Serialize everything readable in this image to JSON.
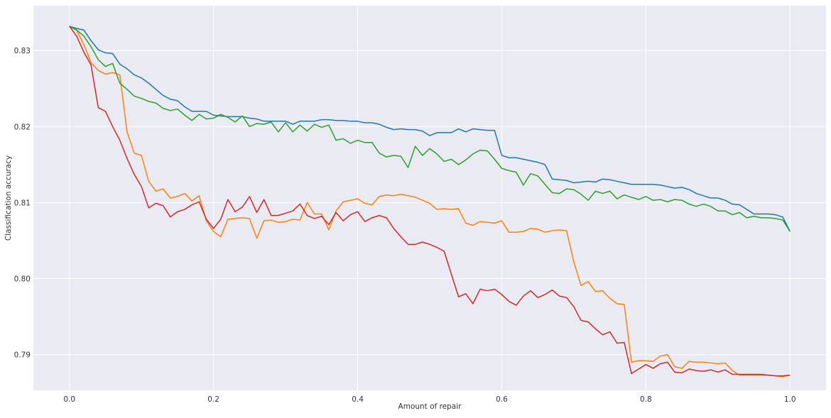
{
  "chart_data": {
    "type": "line",
    "xlabel": "Amount of repair",
    "ylabel": "Classification accuracy",
    "xlim": [
      -0.05,
      1.05
    ],
    "ylim": [
      0.7853,
      0.8359
    ],
    "grid": true,
    "legend": "none",
    "x_ticks": [
      {
        "value": 0.0,
        "label": "0.0"
      },
      {
        "value": 0.2,
        "label": "0.2"
      },
      {
        "value": 0.4,
        "label": "0.4"
      },
      {
        "value": 0.6,
        "label": "0.6"
      },
      {
        "value": 0.8,
        "label": "0.8"
      },
      {
        "value": 1.0,
        "label": "1.0"
      }
    ],
    "y_ticks": [
      {
        "value": 0.79,
        "label": "0.79"
      },
      {
        "value": 0.8,
        "label": "0.80"
      },
      {
        "value": 0.81,
        "label": "0.81"
      },
      {
        "value": 0.82,
        "label": "0.82"
      },
      {
        "value": 0.83,
        "label": "0.83"
      }
    ],
    "series": [
      {
        "color": "#1f77b4",
        "x": [
          0.0,
          0.01,
          0.02,
          0.03,
          0.04,
          0.05,
          0.06,
          0.07,
          0.08,
          0.09,
          0.1,
          0.11,
          0.12,
          0.13,
          0.14,
          0.15,
          0.16,
          0.17,
          0.18,
          0.19,
          0.2,
          0.21,
          0.22,
          0.23,
          0.24,
          0.25,
          0.26,
          0.27,
          0.28,
          0.29,
          0.3,
          0.31,
          0.32,
          0.33,
          0.34,
          0.35,
          0.36,
          0.37,
          0.38,
          0.39,
          0.4,
          0.41,
          0.42,
          0.43,
          0.44,
          0.45,
          0.46,
          0.47,
          0.48,
          0.49,
          0.5,
          0.51,
          0.52,
          0.53,
          0.54,
          0.55,
          0.56,
          0.57,
          0.58,
          0.59,
          0.6,
          0.61,
          0.62,
          0.63,
          0.64,
          0.65,
          0.66,
          0.67,
          0.68,
          0.69,
          0.7,
          0.71,
          0.72,
          0.73,
          0.74,
          0.75,
          0.76,
          0.77,
          0.78,
          0.79,
          0.8,
          0.81,
          0.82,
          0.83,
          0.84,
          0.85,
          0.86,
          0.87,
          0.88,
          0.89,
          0.9,
          0.91,
          0.92,
          0.93,
          0.94,
          0.95,
          0.96,
          0.97,
          0.98,
          0.99,
          1.0
        ],
        "y": [
          0.8332,
          0.8329,
          0.8327,
          0.8313,
          0.8301,
          0.8297,
          0.8296,
          0.8282,
          0.8276,
          0.8268,
          0.8264,
          0.8257,
          0.8249,
          0.8241,
          0.8236,
          0.8234,
          0.8226,
          0.822,
          0.822,
          0.822,
          0.8215,
          0.8214,
          0.8213,
          0.8213,
          0.8213,
          0.8211,
          0.821,
          0.8207,
          0.8207,
          0.8207,
          0.8207,
          0.8203,
          0.8207,
          0.8207,
          0.8207,
          0.8209,
          0.8209,
          0.8208,
          0.8208,
          0.8207,
          0.8207,
          0.8205,
          0.8205,
          0.8203,
          0.8199,
          0.8196,
          0.8197,
          0.8196,
          0.8196,
          0.8194,
          0.8188,
          0.8192,
          0.8192,
          0.8192,
          0.8197,
          0.8193,
          0.8197,
          0.8196,
          0.8195,
          0.8195,
          0.8162,
          0.8159,
          0.8159,
          0.8157,
          0.8155,
          0.8153,
          0.815,
          0.8131,
          0.813,
          0.8129,
          0.8126,
          0.8127,
          0.8128,
          0.8127,
          0.8131,
          0.813,
          0.8128,
          0.8126,
          0.8124,
          0.8124,
          0.8124,
          0.8124,
          0.8123,
          0.8121,
          0.8119,
          0.812,
          0.8117,
          0.8112,
          0.8109,
          0.8106,
          0.8106,
          0.8103,
          0.8098,
          0.8097,
          0.8091,
          0.8085,
          0.8085,
          0.8085,
          0.8084,
          0.8081,
          0.8062
        ]
      },
      {
        "color": "#ff7f0e",
        "x": [
          0.0,
          0.01,
          0.02,
          0.03,
          0.04,
          0.05,
          0.06,
          0.07,
          0.08,
          0.09,
          0.1,
          0.11,
          0.12,
          0.13,
          0.14,
          0.15,
          0.16,
          0.17,
          0.18,
          0.19,
          0.2,
          0.21,
          0.22,
          0.23,
          0.24,
          0.25,
          0.26,
          0.27,
          0.28,
          0.29,
          0.3,
          0.31,
          0.32,
          0.33,
          0.34,
          0.35,
          0.36,
          0.37,
          0.38,
          0.39,
          0.4,
          0.41,
          0.42,
          0.43,
          0.44,
          0.45,
          0.46,
          0.47,
          0.48,
          0.49,
          0.5,
          0.51,
          0.52,
          0.53,
          0.54,
          0.55,
          0.56,
          0.57,
          0.58,
          0.59,
          0.6,
          0.61,
          0.62,
          0.63,
          0.64,
          0.65,
          0.66,
          0.67,
          0.68,
          0.69,
          0.7,
          0.71,
          0.72,
          0.73,
          0.74,
          0.75,
          0.76,
          0.77,
          0.78,
          0.79,
          0.8,
          0.81,
          0.82,
          0.83,
          0.84,
          0.85,
          0.86,
          0.87,
          0.88,
          0.89,
          0.9,
          0.91,
          0.92,
          0.93,
          0.94,
          0.95,
          0.96,
          0.97,
          0.98,
          0.99,
          1.0
        ],
        "y": [
          0.8332,
          0.8327,
          0.8308,
          0.8284,
          0.8274,
          0.8269,
          0.8271,
          0.8268,
          0.8193,
          0.8165,
          0.8162,
          0.8128,
          0.8115,
          0.8118,
          0.8106,
          0.8108,
          0.8112,
          0.8102,
          0.8109,
          0.8076,
          0.8062,
          0.8055,
          0.8078,
          0.8079,
          0.808,
          0.8079,
          0.8053,
          0.8076,
          0.8077,
          0.8074,
          0.8075,
          0.8078,
          0.8077,
          0.81,
          0.8085,
          0.8085,
          0.8064,
          0.8089,
          0.8101,
          0.8103,
          0.8105,
          0.8099,
          0.8097,
          0.8108,
          0.811,
          0.8109,
          0.8111,
          0.8109,
          0.8107,
          0.8103,
          0.8099,
          0.8091,
          0.8092,
          0.8091,
          0.8092,
          0.8073,
          0.807,
          0.8075,
          0.8074,
          0.8073,
          0.8076,
          0.8061,
          0.8061,
          0.8062,
          0.8066,
          0.8065,
          0.8061,
          0.8063,
          0.8064,
          0.8063,
          0.8022,
          0.7991,
          0.7996,
          0.7983,
          0.7984,
          0.7974,
          0.7967,
          0.7966,
          0.789,
          0.7892,
          0.7892,
          0.7891,
          0.7898,
          0.79,
          0.7884,
          0.7882,
          0.7891,
          0.789,
          0.789,
          0.7889,
          0.7888,
          0.7889,
          0.7879,
          0.7873,
          0.7873,
          0.7873,
          0.7873,
          0.7873,
          0.7872,
          0.7871,
          0.7873
        ]
      },
      {
        "color": "#2ca02c",
        "x": [
          0.0,
          0.01,
          0.02,
          0.03,
          0.04,
          0.05,
          0.06,
          0.07,
          0.08,
          0.09,
          0.1,
          0.11,
          0.12,
          0.13,
          0.14,
          0.15,
          0.16,
          0.17,
          0.18,
          0.19,
          0.2,
          0.21,
          0.22,
          0.23,
          0.24,
          0.25,
          0.26,
          0.27,
          0.28,
          0.29,
          0.3,
          0.31,
          0.32,
          0.33,
          0.34,
          0.35,
          0.36,
          0.37,
          0.38,
          0.39,
          0.4,
          0.41,
          0.42,
          0.43,
          0.44,
          0.45,
          0.46,
          0.47,
          0.48,
          0.49,
          0.5,
          0.51,
          0.52,
          0.53,
          0.54,
          0.55,
          0.56,
          0.57,
          0.58,
          0.59,
          0.6,
          0.61,
          0.62,
          0.63,
          0.64,
          0.65,
          0.66,
          0.67,
          0.68,
          0.69,
          0.7,
          0.71,
          0.72,
          0.73,
          0.74,
          0.75,
          0.76,
          0.77,
          0.78,
          0.79,
          0.8,
          0.81,
          0.82,
          0.83,
          0.84,
          0.85,
          0.86,
          0.87,
          0.88,
          0.89,
          0.9,
          0.91,
          0.92,
          0.93,
          0.94,
          0.95,
          0.96,
          0.97,
          0.98,
          0.99,
          1.0
        ],
        "y": [
          0.8332,
          0.8327,
          0.8319,
          0.8305,
          0.8288,
          0.8279,
          0.8283,
          0.8257,
          0.8249,
          0.824,
          0.8237,
          0.8233,
          0.8231,
          0.8224,
          0.8221,
          0.8223,
          0.8215,
          0.8208,
          0.8216,
          0.821,
          0.8211,
          0.8216,
          0.8212,
          0.8206,
          0.8214,
          0.82,
          0.8204,
          0.8203,
          0.8206,
          0.8193,
          0.8205,
          0.8193,
          0.8202,
          0.8194,
          0.8203,
          0.8199,
          0.8202,
          0.8182,
          0.8184,
          0.8178,
          0.8182,
          0.8179,
          0.8179,
          0.8165,
          0.816,
          0.8162,
          0.8161,
          0.8146,
          0.8174,
          0.8162,
          0.8171,
          0.8164,
          0.8154,
          0.8157,
          0.815,
          0.8156,
          0.8164,
          0.8169,
          0.8168,
          0.8157,
          0.8145,
          0.8142,
          0.814,
          0.8123,
          0.8138,
          0.8135,
          0.8124,
          0.8113,
          0.8112,
          0.8118,
          0.8117,
          0.8111,
          0.8103,
          0.8115,
          0.8112,
          0.8115,
          0.8105,
          0.811,
          0.8107,
          0.8104,
          0.8108,
          0.8103,
          0.8104,
          0.8101,
          0.8104,
          0.8103,
          0.8098,
          0.8095,
          0.8098,
          0.8095,
          0.8089,
          0.8089,
          0.8084,
          0.8087,
          0.808,
          0.8082,
          0.808,
          0.808,
          0.8079,
          0.8077,
          0.8062
        ]
      },
      {
        "color": "#d62728",
        "x": [
          0.0,
          0.01,
          0.02,
          0.03,
          0.04,
          0.05,
          0.06,
          0.07,
          0.08,
          0.09,
          0.1,
          0.11,
          0.12,
          0.13,
          0.14,
          0.15,
          0.16,
          0.17,
          0.18,
          0.19,
          0.2,
          0.21,
          0.22,
          0.23,
          0.24,
          0.25,
          0.26,
          0.27,
          0.28,
          0.29,
          0.3,
          0.31,
          0.32,
          0.33,
          0.34,
          0.35,
          0.36,
          0.37,
          0.38,
          0.39,
          0.4,
          0.41,
          0.42,
          0.43,
          0.44,
          0.45,
          0.46,
          0.47,
          0.48,
          0.49,
          0.5,
          0.51,
          0.52,
          0.53,
          0.54,
          0.55,
          0.56,
          0.57,
          0.58,
          0.59,
          0.6,
          0.61,
          0.62,
          0.63,
          0.64,
          0.65,
          0.66,
          0.67,
          0.68,
          0.69,
          0.7,
          0.71,
          0.72,
          0.73,
          0.74,
          0.75,
          0.76,
          0.77,
          0.78,
          0.79,
          0.8,
          0.81,
          0.82,
          0.83,
          0.84,
          0.85,
          0.86,
          0.87,
          0.88,
          0.89,
          0.9,
          0.91,
          0.92,
          0.93,
          0.94,
          0.95,
          0.96,
          0.97,
          0.98,
          0.99,
          1.0
        ],
        "y": [
          0.8332,
          0.8319,
          0.8298,
          0.8281,
          0.8225,
          0.822,
          0.82,
          0.8182,
          0.8158,
          0.8137,
          0.8121,
          0.8093,
          0.8099,
          0.8096,
          0.8081,
          0.8088,
          0.8091,
          0.8097,
          0.8101,
          0.8078,
          0.8066,
          0.8078,
          0.8104,
          0.8088,
          0.8094,
          0.8108,
          0.8087,
          0.8104,
          0.8083,
          0.8083,
          0.8086,
          0.8089,
          0.8098,
          0.8083,
          0.8079,
          0.8082,
          0.8071,
          0.8087,
          0.8076,
          0.8084,
          0.8088,
          0.8075,
          0.808,
          0.8083,
          0.808,
          0.8066,
          0.8055,
          0.8045,
          0.8045,
          0.8048,
          0.8045,
          0.8041,
          0.8036,
          0.8006,
          0.7976,
          0.798,
          0.7967,
          0.7986,
          0.7984,
          0.7986,
          0.7979,
          0.797,
          0.7965,
          0.7977,
          0.7984,
          0.7975,
          0.7979,
          0.7985,
          0.7977,
          0.7975,
          0.7963,
          0.7945,
          0.7943,
          0.7934,
          0.7926,
          0.793,
          0.7915,
          0.7916,
          0.7875,
          0.7881,
          0.7887,
          0.7882,
          0.7888,
          0.789,
          0.7877,
          0.7876,
          0.7881,
          0.7879,
          0.7878,
          0.788,
          0.7877,
          0.788,
          0.7874,
          0.7874,
          0.7874,
          0.7874,
          0.7874,
          0.7873,
          0.7872,
          0.7872,
          0.7873
        ]
      }
    ]
  }
}
